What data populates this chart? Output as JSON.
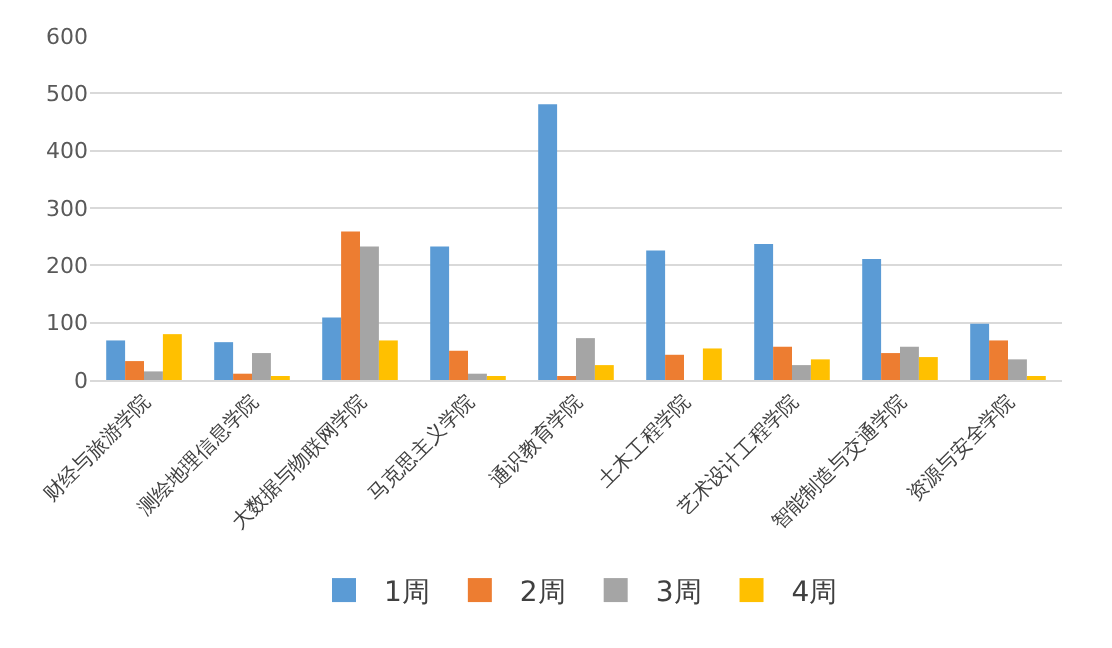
{
  "chart_data": {
    "type": "bar",
    "categories": [
      "财经与旅游学院",
      "测绘地理信息学院",
      "大数据与物联网学院",
      "马克思主义学院",
      "通识教育学院",
      "土木工程学院",
      "艺术设计工程学院",
      "智能制造与交通学院",
      "资源与安全学院"
    ],
    "series": [
      {
        "name": "1周",
        "color": "#5b9bd5",
        "values": [
          69,
          66,
          109,
          233,
          481,
          226,
          237,
          211,
          98
        ]
      },
      {
        "name": "2周",
        "color": "#ed7d31",
        "values": [
          33,
          11,
          259,
          51,
          4,
          44,
          58,
          47,
          69
        ]
      },
      {
        "name": "3周",
        "color": "#a5a5a5",
        "values": [
          15,
          47,
          233,
          11,
          73,
          0,
          26,
          58,
          36
        ]
      },
      {
        "name": "4周",
        "color": "#ffc000",
        "values": [
          80,
          7,
          69,
          4,
          26,
          55,
          36,
          40,
          4
        ]
      }
    ],
    "ylim": [
      0,
      600
    ],
    "yticks": [
      0,
      100,
      200,
      300,
      400,
      500,
      600
    ],
    "grid": "y",
    "legend": "bottom"
  }
}
